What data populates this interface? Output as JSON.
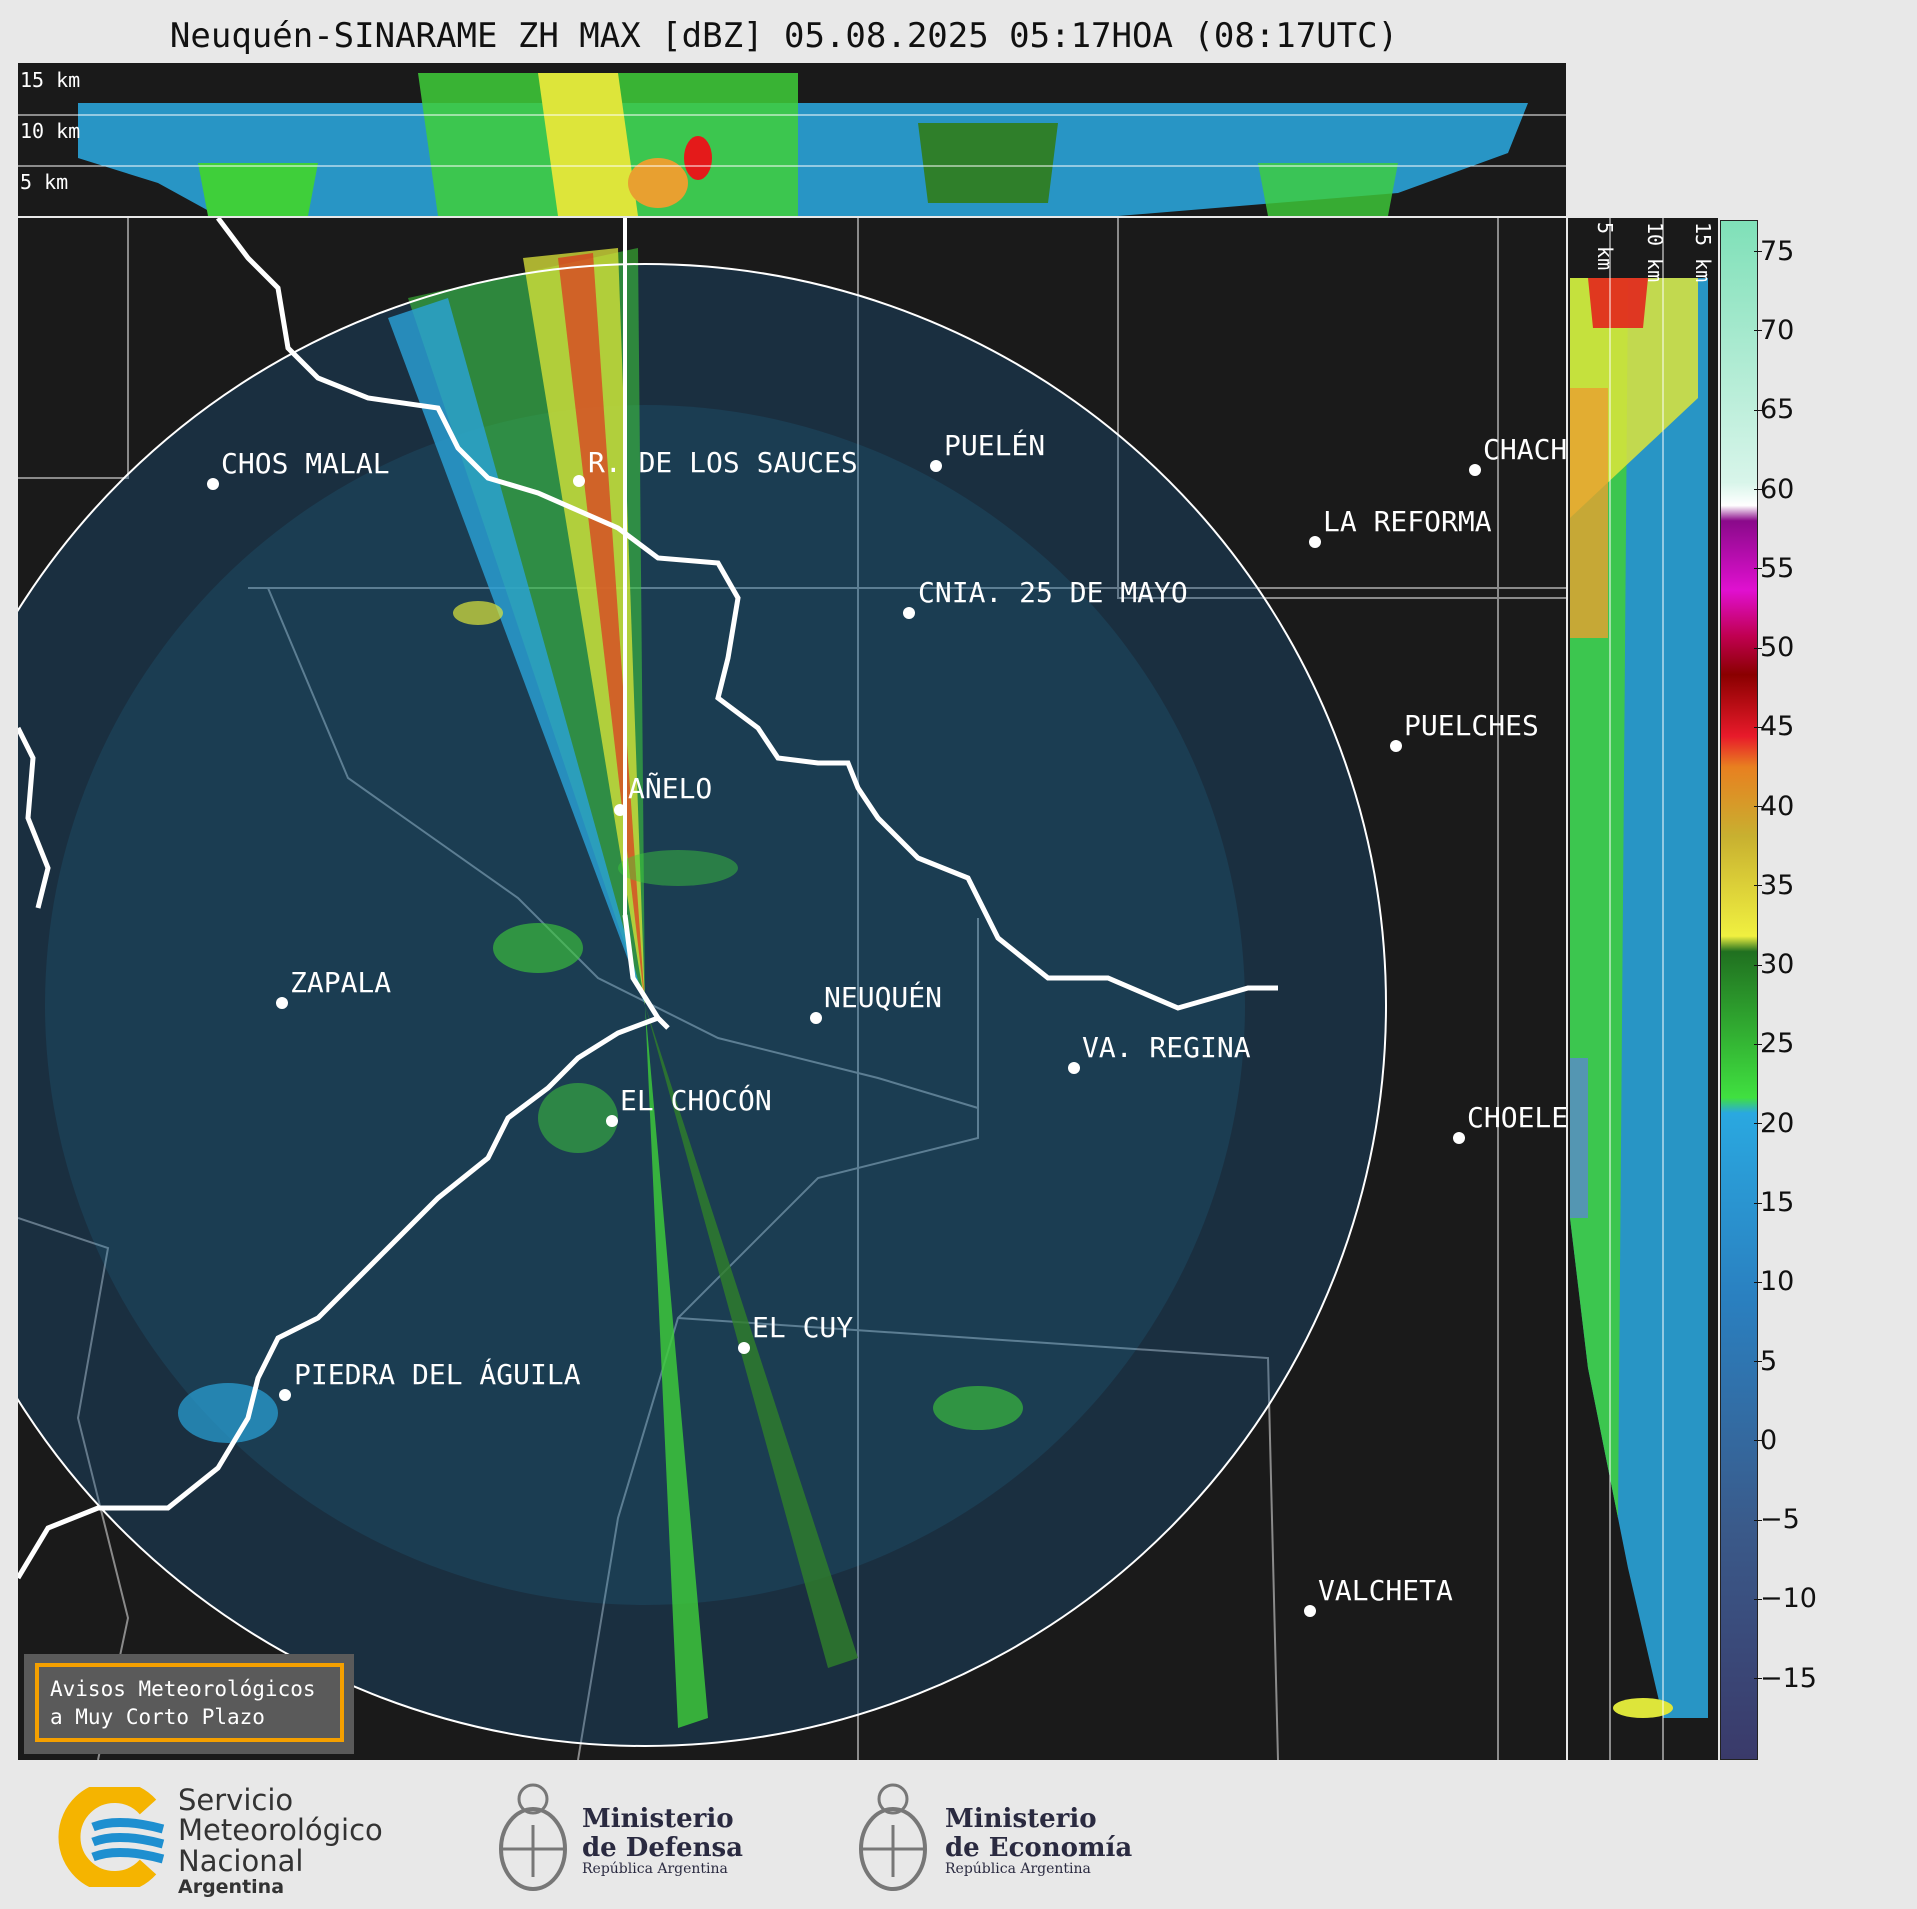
{
  "title": "Neuquén-SINARAME ZH MAX [dBZ] 05.08.2025 05:17HOA (08:17UTC)",
  "top_strip": {
    "height_labels": [
      "15 km",
      "10 km",
      "5 km"
    ]
  },
  "side_strip": {
    "height_labels": [
      "5 km",
      "10 km",
      "15 km"
    ]
  },
  "map": {
    "cities": [
      {
        "name": "CHOS MALAL"
      },
      {
        "name": "R. DE LOS SAUCES"
      },
      {
        "name": "PUELÉN"
      },
      {
        "name": "CHACH"
      },
      {
        "name": "LA REFORMA"
      },
      {
        "name": "CNIA. 25 DE MAYO"
      },
      {
        "name": "PUELCHES"
      },
      {
        "name": "AÑELO"
      },
      {
        "name": "ZAPALA"
      },
      {
        "name": "NEUQUÉN"
      },
      {
        "name": "VA. REGINA"
      },
      {
        "name": "EL CHOCÓN"
      },
      {
        "name": "CHOELE"
      },
      {
        "name": "EL CUY"
      },
      {
        "name": "PIEDRA DEL ÁGUILA"
      },
      {
        "name": "VALCHETA"
      }
    ],
    "warning_box": {
      "line1": "Avisos Meteorológicos",
      "line2": "a Muy Corto Plazo"
    }
  },
  "colorbar": {
    "unit": "dBZ",
    "range": [
      -20,
      77
    ],
    "ticks": [
      "75",
      "70",
      "65",
      "60",
      "55",
      "50",
      "45",
      "40",
      "35",
      "30",
      "25",
      "20",
      "15",
      "10",
      "5",
      "0",
      "−5",
      "−10",
      "−15"
    ],
    "tick_values": [
      75,
      70,
      65,
      60,
      55,
      50,
      45,
      40,
      35,
      30,
      25,
      20,
      15,
      10,
      5,
      0,
      -5,
      -10,
      -15
    ]
  },
  "footer": {
    "smn": {
      "line1": "Servicio",
      "line2": "Meteorológico",
      "line3": "Nacional",
      "line4": "Argentina"
    },
    "defensa": {
      "line1": "Ministerio",
      "line2": "de Defensa",
      "line3": "República Argentina"
    },
    "economia": {
      "line1": "Ministerio",
      "line2": "de Economía",
      "line3": "República Argentina"
    }
  },
  "colors": {
    "background": "#e8e8e8",
    "map_bg": "#1a1a1a",
    "smn_blue": "#1e8fd0",
    "smn_yellow": "#f5b400"
  }
}
